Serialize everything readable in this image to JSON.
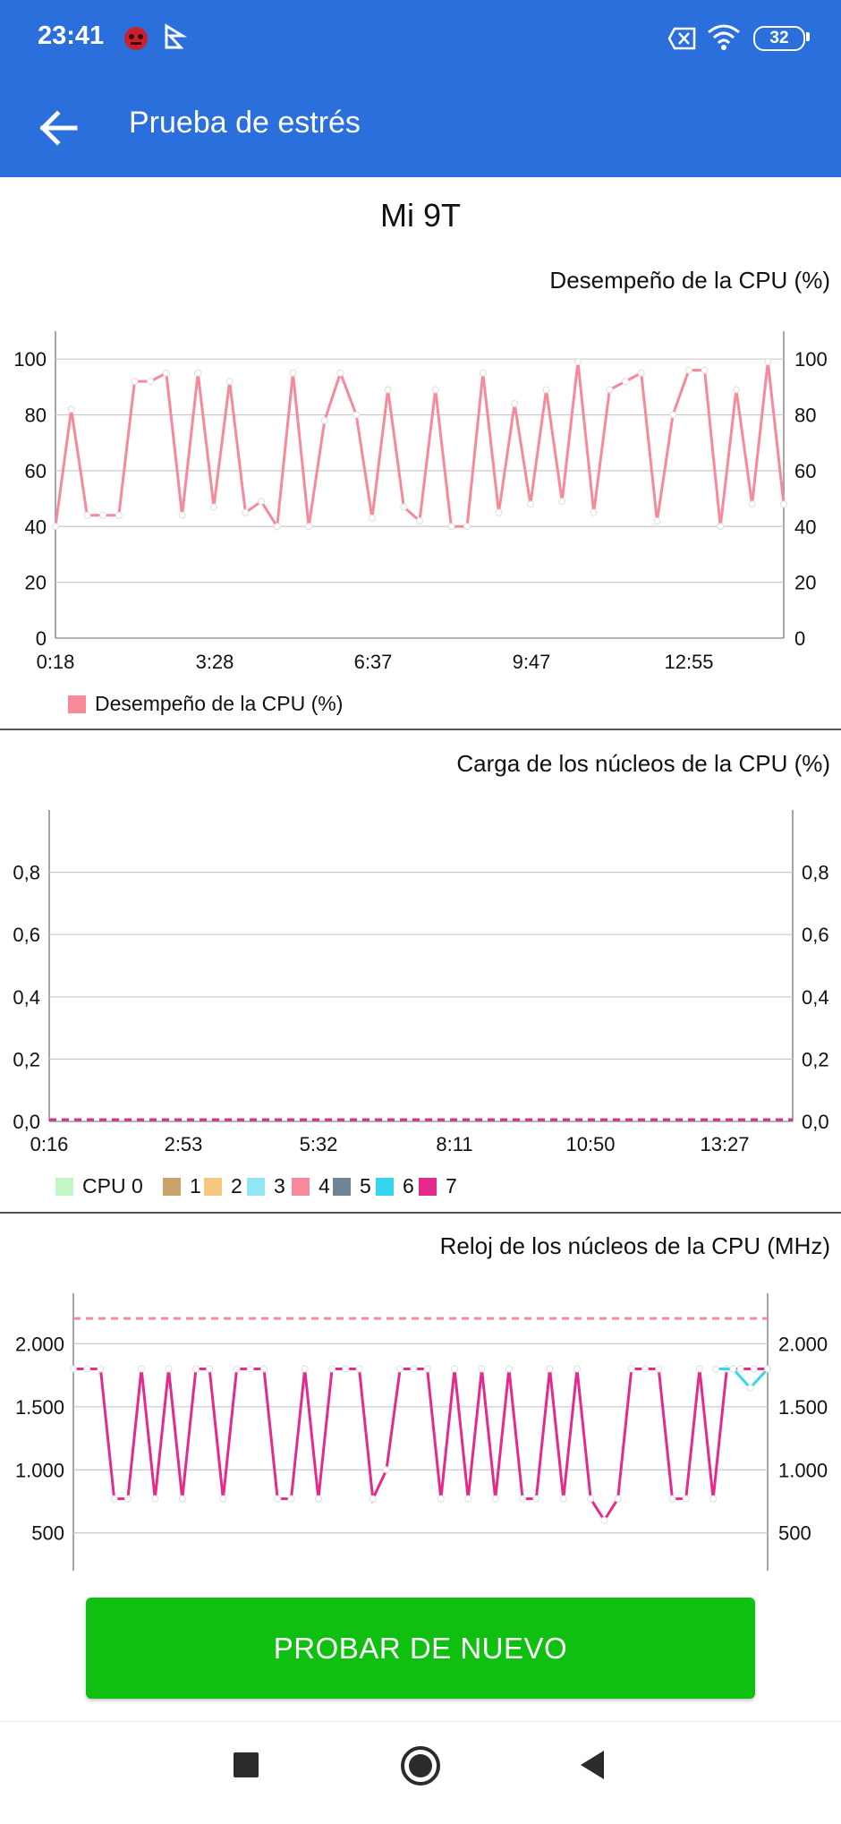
{
  "status_bar": {
    "time": "23:41",
    "battery": "32"
  },
  "app_bar": {
    "title": "Prueba de estrés"
  },
  "device_name": "Mi 9T",
  "charts": [
    {
      "title": "Desempeño de la CPU (%)",
      "legend": [
        "Desempeño de la CPU (%)"
      ]
    },
    {
      "title": "Carga de los núcleos de la CPU (%)",
      "legend": [
        "CPU 0",
        "1",
        "2",
        "3",
        "4",
        "5",
        "6",
        "7"
      ]
    },
    {
      "title": "Reloj de los núcleos de la CPU (MHz)",
      "legend": []
    }
  ],
  "button": {
    "label": "PROBAR DE NUEVO"
  },
  "colors": {
    "accent": "#2a6fdb",
    "button": "#10c010",
    "perf": "#f7899a",
    "core7": "#e62a8c",
    "core6": "#35d6ee",
    "core2": "#f8c77e",
    "core4": "#f7899a"
  },
  "chart_data": [
    {
      "type": "line",
      "title": "Desempeño de la CPU (%)",
      "x_ticks": [
        "0:18",
        "3:28",
        "6:37",
        "9:47",
        "12:55"
      ],
      "y_ticks": [
        0,
        20,
        40,
        60,
        80,
        100
      ],
      "ylim": [
        0,
        110
      ],
      "series": [
        {
          "name": "Desempeño de la CPU (%)",
          "values": [
            40,
            82,
            44,
            44,
            44,
            92,
            92,
            95,
            44,
            95,
            47,
            92,
            45,
            49,
            40,
            95,
            40,
            78,
            95,
            80,
            43,
            89,
            47,
            42,
            89,
            40,
            40,
            95,
            45,
            84,
            48,
            89,
            49,
            99,
            45,
            89,
            92,
            95,
            42,
            80,
            96,
            96,
            40,
            89,
            48,
            99,
            48
          ]
        }
      ]
    },
    {
      "type": "line",
      "title": "Carga de los núcleos de la CPU (%)",
      "x_ticks": [
        "0:16",
        "2:53",
        "5:32",
        "8:11",
        "10:50",
        "13:27"
      ],
      "y_ticks": [
        "0,0",
        "0,2",
        "0,4",
        "0,6",
        "0,8"
      ],
      "ylim": [
        0,
        1
      ],
      "series": [
        {
          "name": "CPU 0",
          "values": [
            0,
            0
          ]
        },
        {
          "name": "1",
          "values": [
            0,
            0
          ]
        },
        {
          "name": "2",
          "values": [
            0,
            0
          ]
        },
        {
          "name": "3",
          "values": [
            0,
            0
          ]
        },
        {
          "name": "4",
          "values": [
            0,
            0
          ]
        },
        {
          "name": "5",
          "values": [
            0,
            0
          ]
        },
        {
          "name": "6",
          "values": [
            0,
            0
          ]
        },
        {
          "name": "7",
          "values": [
            0,
            0
          ]
        }
      ]
    },
    {
      "type": "line",
      "title": "Reloj de los núcleos de la CPU (MHz)",
      "y_ticks": [
        "500",
        "1.000",
        "1.500",
        "2.000"
      ],
      "ylim": [
        200,
        2400
      ],
      "series": [
        {
          "name": "4",
          "values": [
            2200,
            2200
          ]
        },
        {
          "name": "7",
          "values": [
            1800,
            1800,
            1800,
            770,
            770,
            1800,
            770,
            1800,
            770,
            1800,
            1800,
            770,
            1800,
            1800,
            1800,
            770,
            770,
            1800,
            770,
            1800,
            1800,
            1800,
            770,
            1000,
            1800,
            1800,
            1800,
            770,
            1800,
            770,
            1800,
            770,
            1800,
            770,
            770,
            1800,
            770,
            1800,
            770,
            600,
            770,
            1800,
            1800,
            1800,
            770,
            770,
            1800,
            770,
            1800,
            1800,
            1800,
            1800
          ]
        },
        {
          "name": "6",
          "values": [
            1800,
            1800,
            1650,
            1800
          ]
        }
      ]
    }
  ]
}
